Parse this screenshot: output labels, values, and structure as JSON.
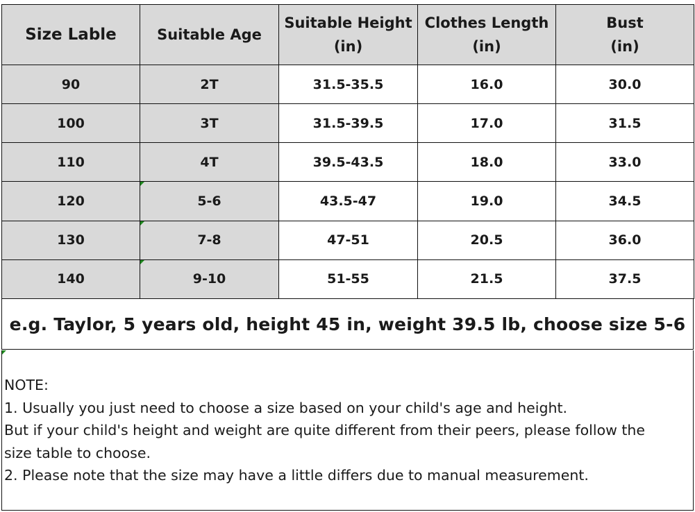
{
  "size_table": {
    "headers": [
      "Size Lable",
      "Suitable Age",
      {
        "line1": "Suitable Height",
        "line2": "(in)"
      },
      {
        "line1": "Clothes Length",
        "line2": "(in)"
      },
      {
        "line1": "Bust",
        "line2": "(in)"
      }
    ],
    "rows": [
      [
        "90",
        "2T",
        "31.5-35.5",
        "16.0",
        "30.0"
      ],
      [
        "100",
        "3T",
        "31.5-39.5",
        "17.0",
        "31.5"
      ],
      [
        "110",
        "4T",
        "39.5-43.5",
        "18.0",
        "33.0"
      ],
      [
        "120",
        "5-6",
        "43.5-47",
        "19.0",
        "34.5"
      ],
      [
        "130",
        "7-8",
        "47-51",
        "20.5",
        "36.0"
      ],
      [
        "140",
        "9-10",
        "51-55",
        "21.5",
        "37.5"
      ]
    ]
  },
  "example": "e.g. Taylor, 5 years old, height 45 in, weight 39.5 lb, choose size 5-6",
  "note": {
    "title": "NOTE:",
    "lines": [
      "1. Usually you just need to choose a size based on your child's age and height.",
      "But if your child's height and weight are quite different from their peers, please follow the",
      "size table to choose.",
      "2.  Please note that the size may have a little differs due to manual measurement."
    ]
  },
  "colors": {
    "header_fill": "#d9d9d9",
    "border": "#111111",
    "corner_marker": "#1f8a1f"
  }
}
